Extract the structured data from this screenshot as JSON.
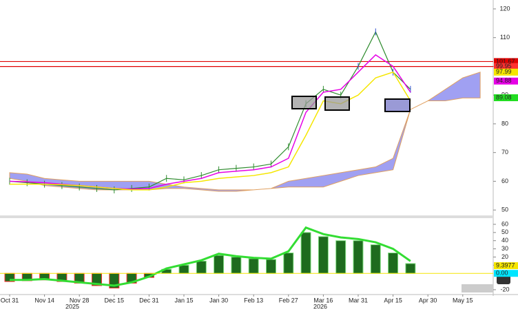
{
  "chart_data": [
    {
      "type": "price",
      "categories": [
        "Oct 31",
        null,
        "Nov 14",
        null,
        "Nov 28",
        null,
        "Dec 15",
        null,
        "Dec 31",
        null,
        "Jan 15",
        null,
        "Jan 30",
        null,
        "Feb 13",
        null,
        "Feb 27",
        null,
        "Mar 16",
        null,
        "Mar 31",
        null,
        "Apr 15",
        null,
        "Apr 30",
        null,
        "May 15",
        null
      ],
      "years": [
        "2025",
        "2026"
      ],
      "ylim": [
        48.6,
        123.1
      ],
      "yticks": [
        50,
        60,
        70,
        80,
        90,
        100,
        110,
        120
      ],
      "grid": false,
      "series": [
        {
          "color": "#2e8b2e",
          "values": [
            60,
            59.5,
            59,
            58.5,
            58,
            57.5,
            57,
            57.5,
            58,
            61,
            60.5,
            62,
            64,
            64.5,
            65,
            66,
            72,
            87,
            92,
            90,
            100,
            112,
            98,
            92,
            null,
            null,
            null,
            null
          ]
        },
        {
          "color": "#e600e6",
          "values": [
            60,
            59.8,
            59.5,
            59,
            58.5,
            58,
            57.5,
            57.3,
            57.5,
            59,
            60,
            61,
            63,
            63.5,
            64,
            65,
            68,
            84,
            91,
            92,
            98,
            104,
            100,
            91,
            null,
            null,
            null,
            null
          ]
        },
        {
          "color": "#f5e600",
          "values": [
            59,
            59,
            59,
            58.8,
            58.5,
            58,
            57.5,
            57,
            57,
            58,
            59.5,
            60,
            61,
            61.5,
            62,
            63,
            65,
            76,
            88,
            87,
            90,
            96,
            98,
            88,
            null,
            null,
            null,
            null
          ]
        }
      ],
      "cloud": {
        "color": "#8f8ff0",
        "upper": [
          63,
          62.5,
          61,
          60.5,
          60,
          60,
          60,
          60,
          60,
          59,
          58,
          57.5,
          57,
          57,
          57,
          57.5,
          60,
          61,
          62,
          63,
          64,
          65,
          68,
          85,
          88,
          92,
          96,
          98
        ],
        "lower": [
          61,
          60,
          58.5,
          58,
          57.5,
          57,
          57,
          57,
          57,
          57.5,
          57.5,
          57,
          56.5,
          56.5,
          57,
          57.5,
          58,
          58,
          58,
          60,
          62,
          63,
          64,
          85,
          88,
          88,
          89,
          89
        ]
      },
      "hlines": [
        {
          "value": 101.67,
          "color": "#e00000"
        },
        {
          "value": 99.95,
          "color": "#e00000"
        }
      ],
      "price_labels": [
        {
          "value": 101.67,
          "label": "101.67",
          "color": "#e00000"
        },
        {
          "value": 99.95,
          "label": "99.95",
          "color": "#ff3030"
        },
        {
          "value": 97.99,
          "label": "97.99",
          "color": "#f5e600"
        },
        {
          "value": 94.88,
          "label": "94.88",
          "color": "#e600e6"
        },
        {
          "value": 89.08,
          "label": "89.08",
          "color": "#22dd22"
        }
      ]
    },
    {
      "type": "oscillator",
      "ylim": [
        -23.4,
        66.7
      ],
      "yticks": [
        -20,
        10,
        20,
        30,
        40,
        50,
        60
      ],
      "series": [
        {
          "color": "#1e6b1e",
          "values": [
            -10,
            -9,
            -8,
            -10,
            -12,
            -15,
            -18,
            -12,
            -5,
            5,
            10,
            15,
            22,
            20,
            18,
            17,
            25,
            50,
            45,
            40,
            40,
            35,
            25,
            12,
            null,
            null,
            null,
            null
          ]
        },
        {
          "color": "#33dd33",
          "values": [
            -8,
            -8,
            -7,
            -9,
            -11,
            -13,
            -15,
            -11,
            -4,
            6,
            11,
            16,
            24,
            21,
            19,
            18,
            27,
            56,
            48,
            44,
            42,
            38,
            30,
            15,
            null,
            null,
            null,
            null
          ]
        }
      ],
      "price_labels": [
        {
          "value": 9.3977,
          "label": "9.3977",
          "color": "#f5e600"
        },
        {
          "value": 0,
          "label": "0.00",
          "color": "#00e5ff"
        }
      ]
    }
  ]
}
